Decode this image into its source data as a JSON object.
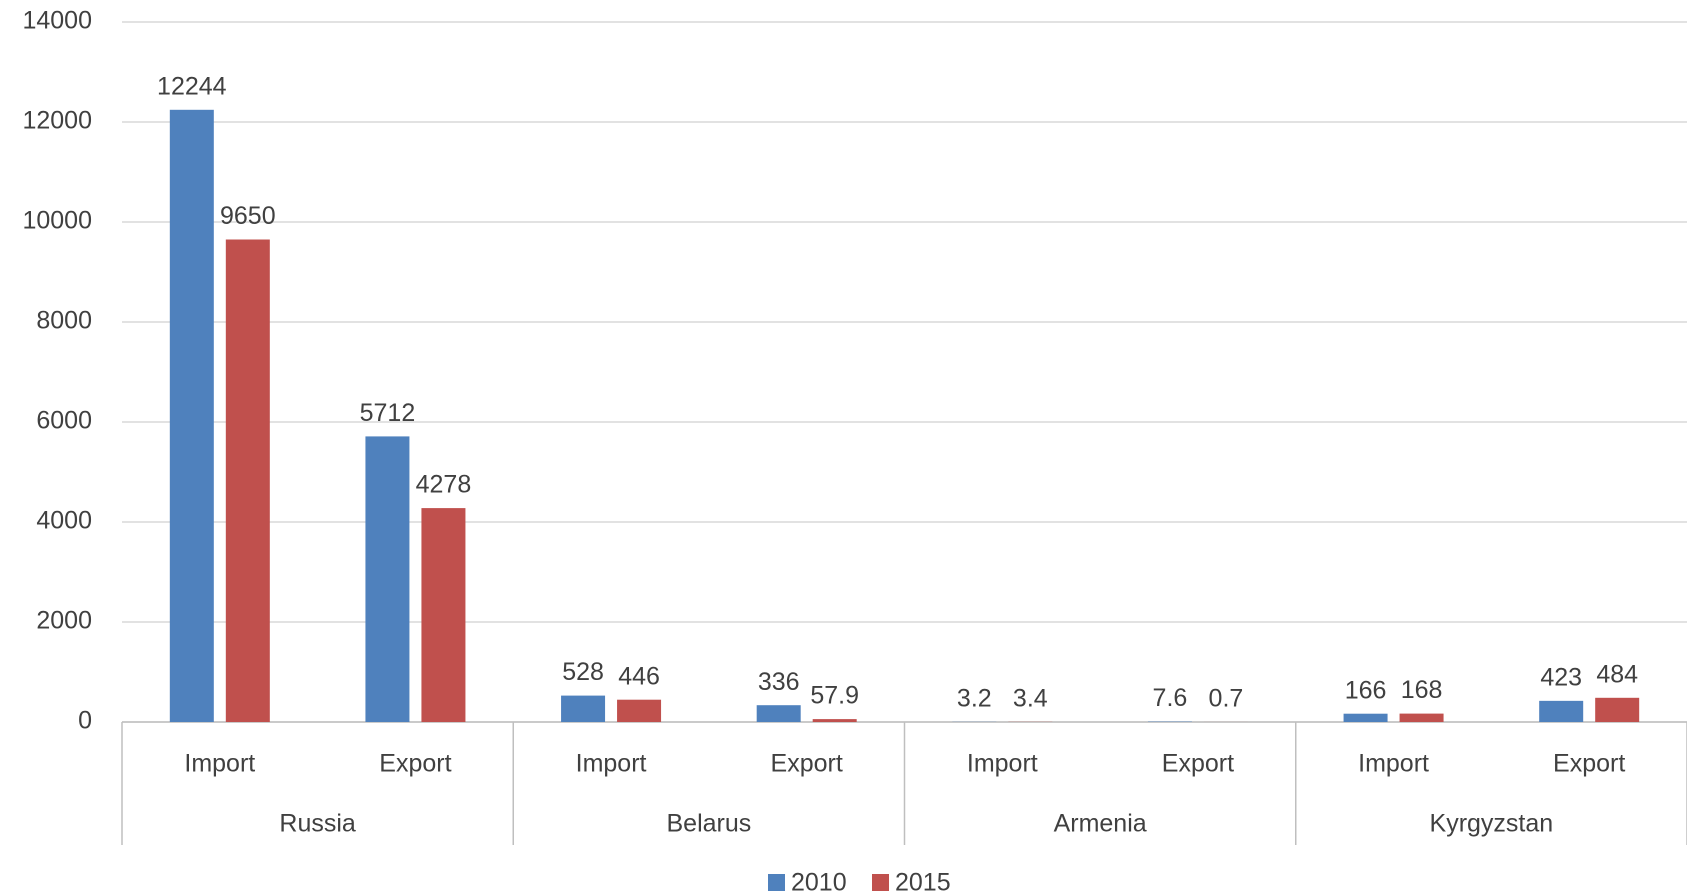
{
  "chart_data": {
    "type": "bar",
    "categories": [
      "Import",
      "Export",
      "Import",
      "Export",
      "Import",
      "Export",
      "Import",
      "Export"
    ],
    "groups": [
      "Russia",
      "Belarus",
      "Armenia",
      "Kyrgyzstan"
    ],
    "series": [
      {
        "name": "2010",
        "color": "#4f81bd",
        "values": [
          12244,
          5712,
          528,
          336,
          3.2,
          7.6,
          166,
          423
        ]
      },
      {
        "name": "2015",
        "color": "#c0504d",
        "values": [
          9650,
          4278,
          446,
          57.9,
          3.4,
          0.7,
          168,
          484
        ]
      }
    ],
    "ylim": [
      0,
      14000
    ],
    "yticks": [
      0,
      2000,
      4000,
      6000,
      8000,
      10000,
      12000,
      14000
    ],
    "grid": true,
    "legend": "bottom"
  }
}
